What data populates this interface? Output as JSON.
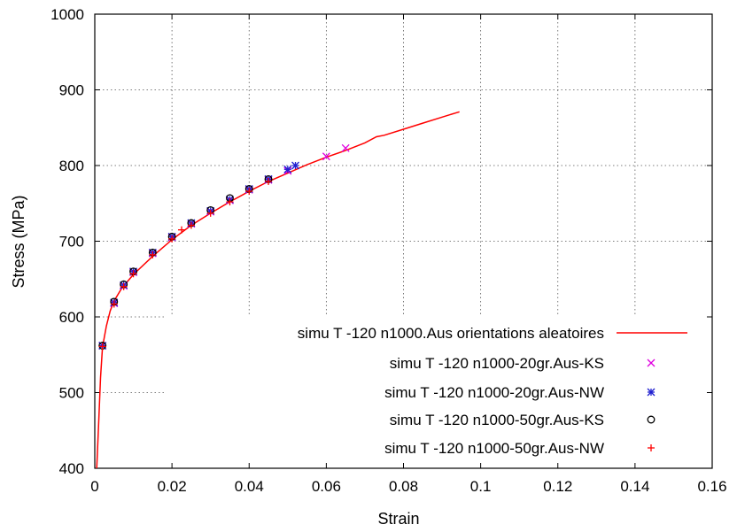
{
  "chart_data": {
    "type": "line",
    "xlabel": "Strain",
    "ylabel": "Stress (MPa)",
    "xlim": [
      0,
      0.16
    ],
    "ylim": [
      400,
      1000
    ],
    "xticks": [
      "0",
      "0.02",
      "0.04",
      "0.06",
      "0.08",
      "0.1",
      "0.12",
      "0.14",
      "0.16"
    ],
    "yticks": [
      "400",
      "500",
      "600",
      "700",
      "800",
      "900",
      "1000"
    ],
    "grid": true,
    "legend_position": "bottom-right",
    "series": [
      {
        "name": "simu T -120 n1000.Aus orientations aleatoires",
        "kind": "line",
        "color": "#ff0000",
        "x": [
          0.0005,
          0.001,
          0.0015,
          0.002,
          0.003,
          0.004,
          0.005,
          0.007,
          0.01,
          0.015,
          0.02,
          0.025,
          0.03,
          0.035,
          0.04,
          0.045,
          0.05,
          0.055,
          0.06,
          0.065,
          0.07,
          0.073,
          0.075,
          0.08,
          0.085,
          0.09,
          0.0945
        ],
        "y": [
          400,
          460,
          520,
          560,
          588,
          608,
          621,
          638,
          656,
          680,
          702,
          721,
          737,
          752,
          766,
          779,
          790,
          801,
          811,
          820,
          830,
          838,
          840,
          848,
          856,
          864,
          871
        ]
      },
      {
        "name": "simu T -120 n1000-20gr.Aus-KS",
        "kind": "scatter",
        "marker": "x",
        "color": "#e000e0",
        "x": [
          0.002,
          0.005,
          0.0075,
          0.01,
          0.015,
          0.02,
          0.025,
          0.03,
          0.035,
          0.04,
          0.045,
          0.05,
          0.06,
          0.065
        ],
        "y": [
          562,
          618,
          641,
          659,
          684,
          705,
          723,
          739,
          754,
          768,
          781,
          793,
          812,
          823
        ]
      },
      {
        "name": "simu T -120 n1000-20gr.Aus-NW",
        "kind": "scatter",
        "marker": "asterisk",
        "color": "#2020d0",
        "x": [
          0.002,
          0.005,
          0.0075,
          0.01,
          0.015,
          0.02,
          0.025,
          0.03,
          0.035,
          0.04,
          0.045,
          0.05,
          0.052
        ],
        "y": [
          562,
          619,
          642,
          660,
          685,
          706,
          724,
          740,
          755,
          769,
          782,
          795,
          800
        ]
      },
      {
        "name": "simu T -120 n1000-50gr.Aus-KS",
        "kind": "scatter",
        "marker": "circle",
        "color": "#000000",
        "x": [
          0.002,
          0.005,
          0.0075,
          0.01,
          0.015,
          0.02,
          0.025,
          0.03,
          0.035,
          0.04,
          0.045
        ],
        "y": [
          562,
          620,
          643,
          660,
          685,
          706,
          724,
          741,
          757,
          769,
          782
        ]
      },
      {
        "name": "simu T -120 n1000-50gr.Aus-NW",
        "kind": "scatter",
        "marker": "plus",
        "color": "#ff0000",
        "x": [
          0.002,
          0.005,
          0.0075,
          0.01,
          0.015,
          0.02,
          0.0225,
          0.025,
          0.03,
          0.035,
          0.04,
          0.045
        ],
        "y": [
          561,
          617,
          640,
          657,
          682,
          703,
          715,
          721,
          737,
          752,
          766,
          779
        ]
      }
    ]
  }
}
